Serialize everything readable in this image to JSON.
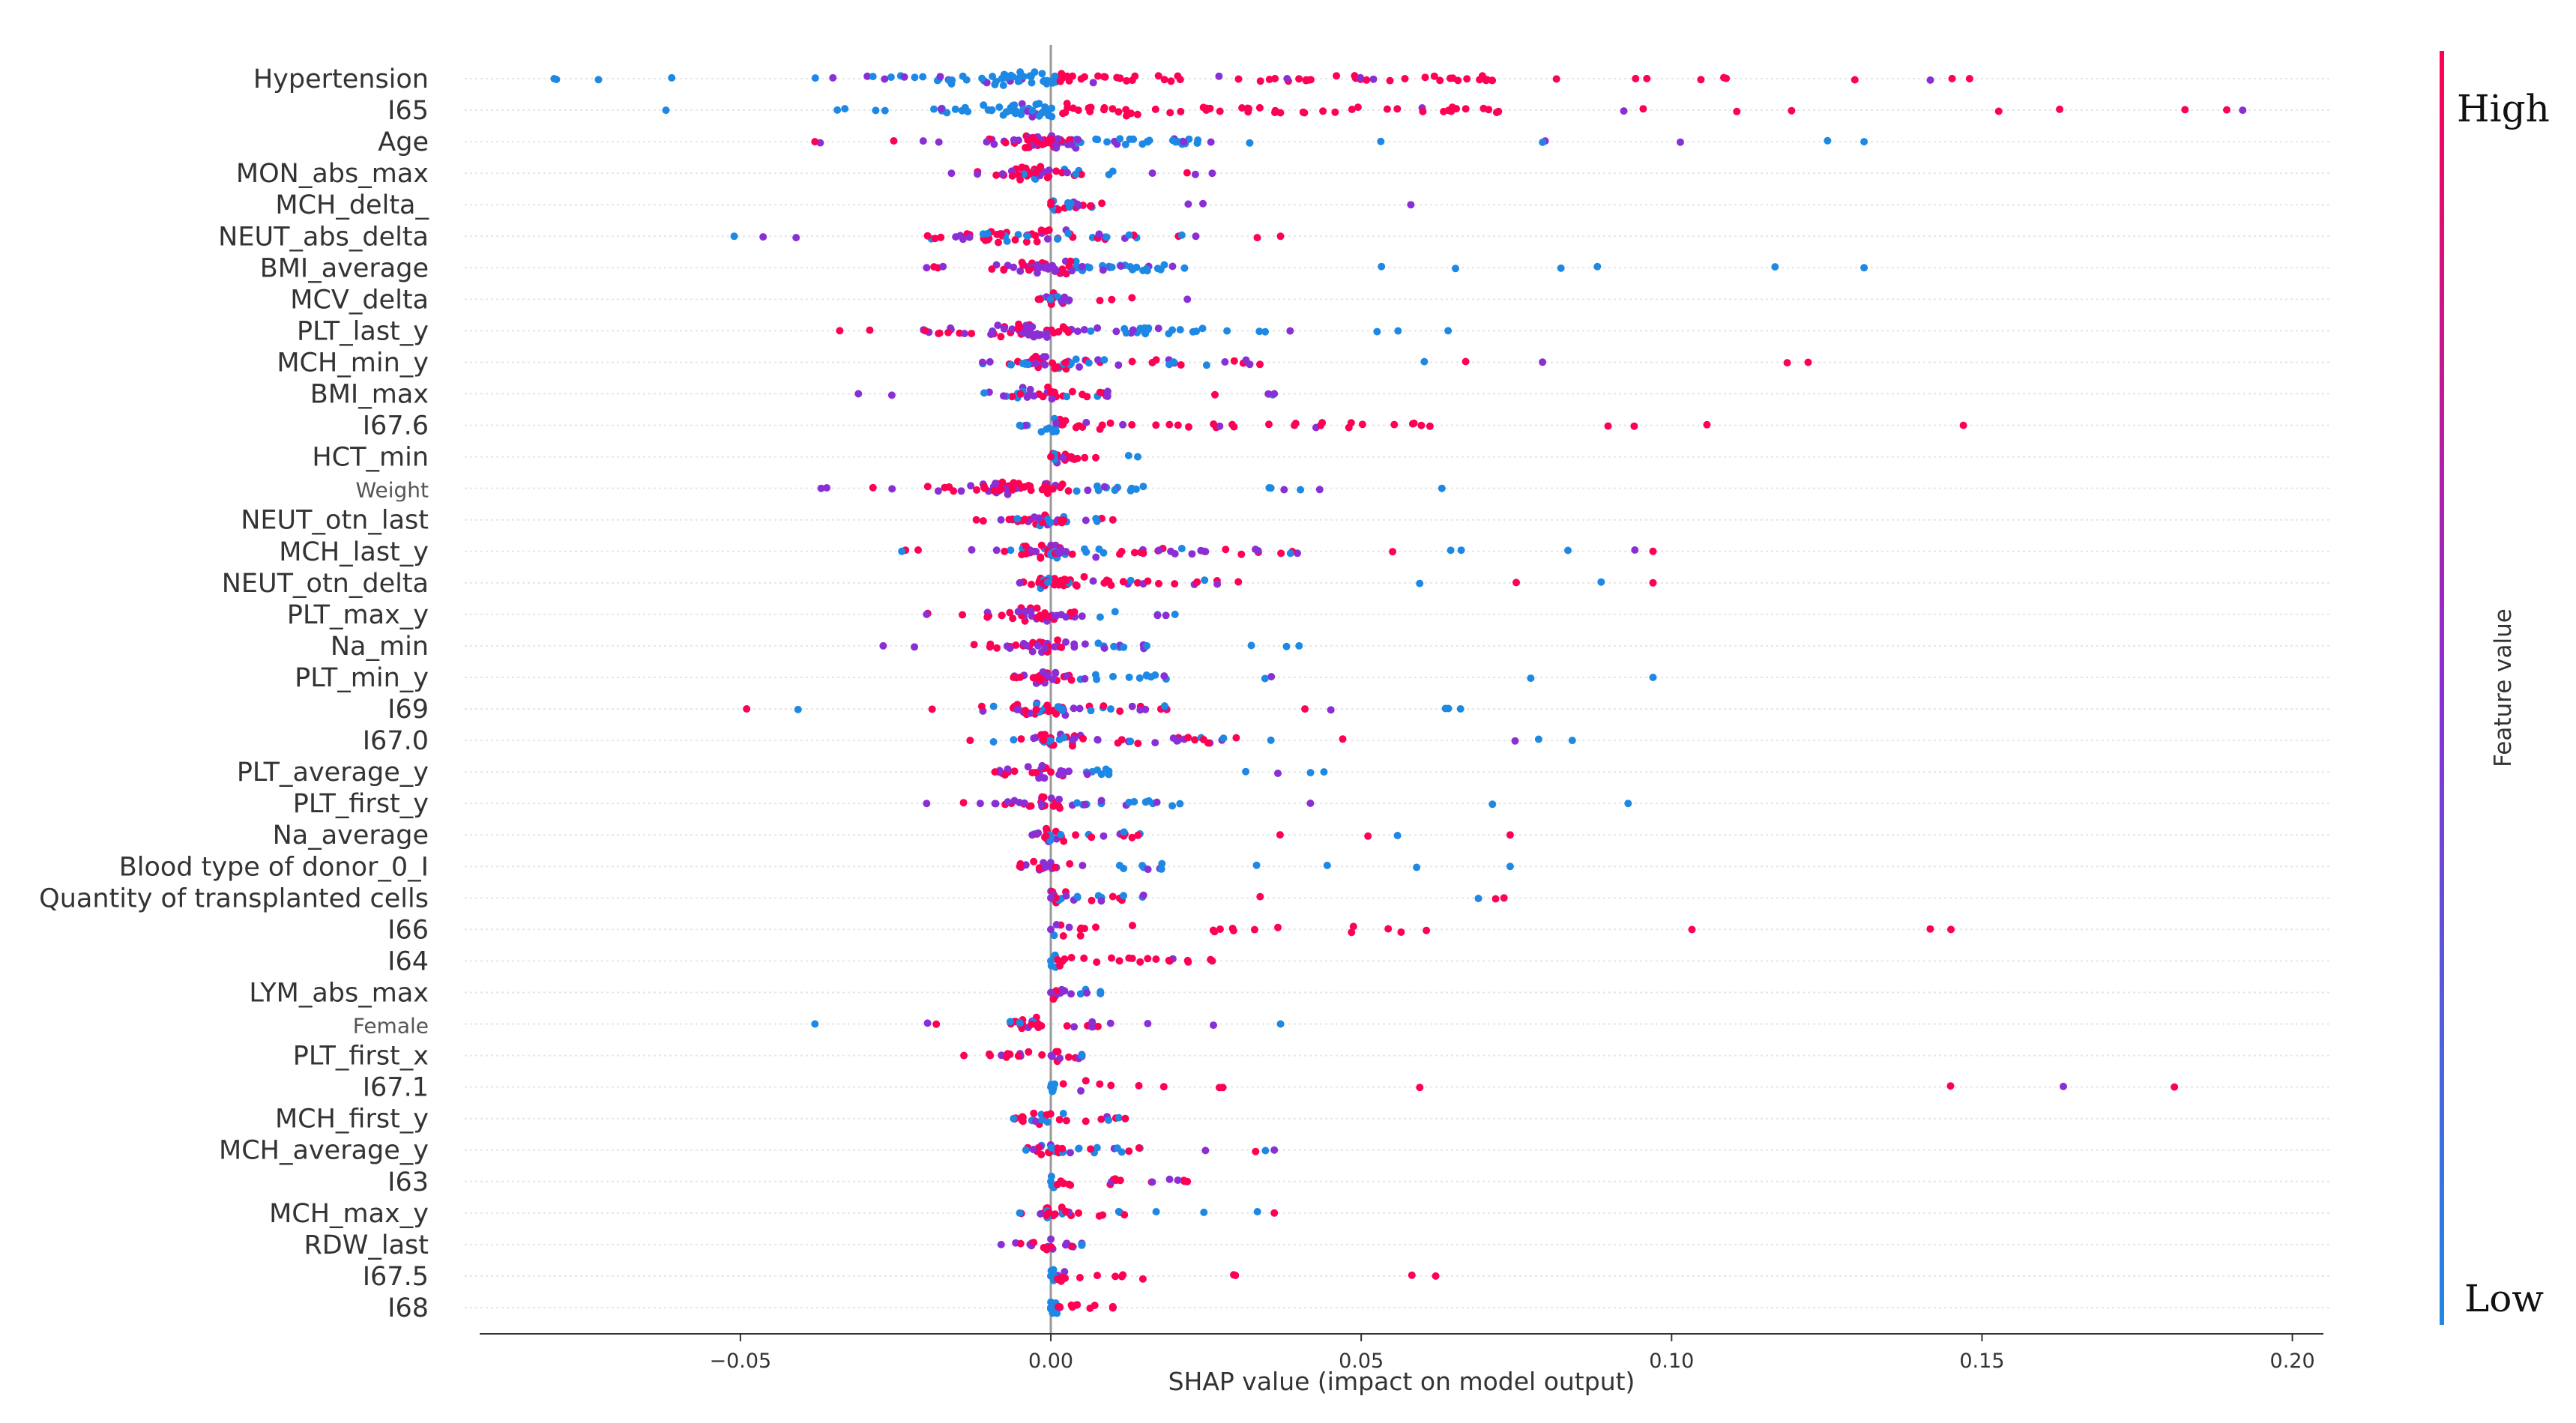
{
  "colors": {
    "high": "#ff0052",
    "low": "#1e88e5",
    "mid": "#8a2fd6",
    "grid": "#e6e6e6",
    "axis": "#333333",
    "zero": "#999999"
  },
  "chart_data": {
    "type": "scatter",
    "title": "",
    "xlabel": "SHAP value (impact on model output)",
    "xlim": [
      -0.092,
      0.205
    ],
    "xticks": [
      -0.05,
      0.0,
      0.05,
      0.1,
      0.15,
      0.2
    ],
    "xtick_labels": [
      "−0.05",
      "0.00",
      "0.05",
      "0.10",
      "0.15",
      "0.20"
    ],
    "colorbar": {
      "title": "Feature value",
      "high_label": "High",
      "low_label": "Low"
    },
    "features": [
      {
        "name": "Hypertension",
        "min": -0.08,
        "max": 0.148,
        "lo": "left",
        "rmax": 0.072,
        "lmin": -0.03,
        "n": 70
      },
      {
        "name": "I65",
        "min": -0.062,
        "max": 0.192,
        "lo": "left",
        "rmax": 0.075,
        "lmin": -0.02,
        "n": 60
      },
      {
        "name": "Age",
        "min": -0.038,
        "max": 0.131,
        "lo": "right",
        "rmax": 0.025,
        "lmin": -0.012,
        "n": 55
      },
      {
        "name": "MON_abs_max",
        "min": -0.016,
        "max": 0.026,
        "lo": "mix",
        "rmax": 0.01,
        "lmin": -0.01,
        "n": 25
      },
      {
        "name": "MCH_delta_",
        "min": 0.0,
        "max": 0.058,
        "lo": "mix",
        "rmax": 0.008,
        "lmin": 0.0,
        "n": 12
      },
      {
        "name": "NEUT_abs_delta",
        "min": -0.051,
        "max": 0.037,
        "lo": "mix",
        "rmax": 0.015,
        "lmin": -0.02,
        "n": 35
      },
      {
        "name": "BMI_average",
        "min": -0.02,
        "max": 0.131,
        "lo": "right",
        "rmax": 0.02,
        "lmin": -0.01,
        "n": 45
      },
      {
        "name": "MCV_delta",
        "min": -0.002,
        "max": 0.022,
        "lo": "mix",
        "rmax": 0.003,
        "lmin": -0.002,
        "n": 10
      },
      {
        "name": "PLT_last_y",
        "min": -0.034,
        "max": 0.064,
        "lo": "right",
        "rmax": 0.025,
        "lmin": -0.02,
        "n": 45
      },
      {
        "name": "MCH_min_y",
        "min": -0.011,
        "max": 0.122,
        "lo": "mix",
        "rmax": 0.035,
        "lmin": -0.008,
        "n": 35
      },
      {
        "name": "BMI_max",
        "min": -0.031,
        "max": 0.036,
        "lo": "mix",
        "rmax": 0.01,
        "lmin": -0.01,
        "n": 22
      },
      {
        "name": "I67.6",
        "min": -0.005,
        "max": 0.147,
        "lo": "left",
        "rmax": 0.06,
        "lmin": -0.004,
        "n": 30
      },
      {
        "name": "HCT_min",
        "min": 0.0,
        "max": 0.014,
        "lo": "mix",
        "rmax": 0.005,
        "lmin": 0.0,
        "n": 8
      },
      {
        "name": "Weight",
        "min": -0.037,
        "max": 0.063,
        "lo": "right",
        "rmax": 0.015,
        "lmin": -0.02,
        "n": 40
      },
      {
        "name": "NEUT_otn_last",
        "min": -0.012,
        "max": 0.01,
        "lo": "mix",
        "rmax": 0.006,
        "lmin": -0.008,
        "n": 18
      },
      {
        "name": "MCH_last_y",
        "min": -0.024,
        "max": 0.097,
        "lo": "mix",
        "rmax": 0.04,
        "lmin": -0.01,
        "n": 40
      },
      {
        "name": "NEUT_otn_delta",
        "min": -0.005,
        "max": 0.097,
        "lo": "mix",
        "rmax": 0.03,
        "lmin": -0.005,
        "n": 30
      },
      {
        "name": "PLT_max_y",
        "min": -0.02,
        "max": 0.02,
        "lo": "right",
        "rmax": 0.012,
        "lmin": -0.012,
        "n": 25
      },
      {
        "name": "Na_min",
        "min": -0.027,
        "max": 0.04,
        "lo": "right",
        "rmax": 0.015,
        "lmin": -0.01,
        "n": 25
      },
      {
        "name": "PLT_min_y",
        "min": -0.006,
        "max": 0.097,
        "lo": "right",
        "rmax": 0.02,
        "lmin": -0.005,
        "n": 22
      },
      {
        "name": "I69",
        "min": -0.049,
        "max": 0.066,
        "lo": "mix",
        "rmax": 0.02,
        "lmin": -0.012,
        "n": 30
      },
      {
        "name": "I67.0",
        "min": -0.013,
        "max": 0.084,
        "lo": "mix",
        "rmax": 0.03,
        "lmin": -0.005,
        "n": 30
      },
      {
        "name": "PLT_average_y",
        "min": -0.009,
        "max": 0.044,
        "lo": "right",
        "rmax": 0.01,
        "lmin": -0.008,
        "n": 20
      },
      {
        "name": "PLT_first_y",
        "min": -0.02,
        "max": 0.093,
        "lo": "right",
        "rmax": 0.02,
        "lmin": -0.01,
        "n": 25
      },
      {
        "name": "Na_average",
        "min": -0.003,
        "max": 0.074,
        "lo": "mix",
        "rmax": 0.015,
        "lmin": -0.003,
        "n": 18
      },
      {
        "name": "Blood type of donor_0_I",
        "min": -0.005,
        "max": 0.074,
        "lo": "right",
        "rmax": 0.02,
        "lmin": -0.005,
        "n": 15
      },
      {
        "name": "Quantity of transplanted cells",
        "min": 0.0,
        "max": 0.073,
        "lo": "mix",
        "rmax": 0.015,
        "lmin": 0.0,
        "n": 15
      },
      {
        "name": "I66",
        "min": 0.0,
        "max": 0.145,
        "lo": "left",
        "rmax": 0.06,
        "lmin": 0.0,
        "n": 14
      },
      {
        "name": "I64",
        "min": 0.0,
        "max": 0.026,
        "lo": "left",
        "rmax": 0.02,
        "lmin": 0.0,
        "n": 14
      },
      {
        "name": "LYM_abs_max",
        "min": 0.0,
        "max": 0.008,
        "lo": "right",
        "rmax": 0.008,
        "lmin": 0.0,
        "n": 6
      },
      {
        "name": "Female",
        "min": -0.038,
        "max": 0.037,
        "lo": "mix",
        "rmax": 0.008,
        "lmin": -0.01,
        "n": 18
      },
      {
        "name": "PLT_first_x",
        "min": -0.014,
        "max": 0.005,
        "lo": "right",
        "rmax": 0.005,
        "lmin": -0.014,
        "n": 14
      },
      {
        "name": "I67.1",
        "min": 0.0,
        "max": 0.181,
        "lo": "left",
        "rmax": 0.032,
        "lmin": 0.0,
        "n": 6
      },
      {
        "name": "MCH_first_y",
        "min": -0.006,
        "max": 0.012,
        "lo": "mix",
        "rmax": 0.01,
        "lmin": -0.005,
        "n": 14
      },
      {
        "name": "MCH_average_y",
        "min": -0.004,
        "max": 0.036,
        "lo": "mix",
        "rmax": 0.015,
        "lmin": -0.004,
        "n": 18
      },
      {
        "name": "I63",
        "min": 0.0,
        "max": 0.022,
        "lo": "left",
        "rmax": 0.02,
        "lmin": 0.0,
        "n": 10
      },
      {
        "name": "MCH_max_y",
        "min": -0.005,
        "max": 0.036,
        "lo": "mix",
        "rmax": 0.012,
        "lmin": -0.005,
        "n": 16
      },
      {
        "name": "RDW_last",
        "min": -0.008,
        "max": 0.005,
        "lo": "right",
        "rmax": 0.005,
        "lmin": -0.008,
        "n": 10
      },
      {
        "name": "I67.5",
        "min": 0.0,
        "max": 0.062,
        "lo": "left",
        "rmax": 0.015,
        "lmin": 0.0,
        "n": 10
      },
      {
        "name": "I68",
        "min": 0.0,
        "max": 0.01,
        "lo": "left",
        "rmax": 0.01,
        "lmin": 0.0,
        "n": 8
      }
    ]
  }
}
